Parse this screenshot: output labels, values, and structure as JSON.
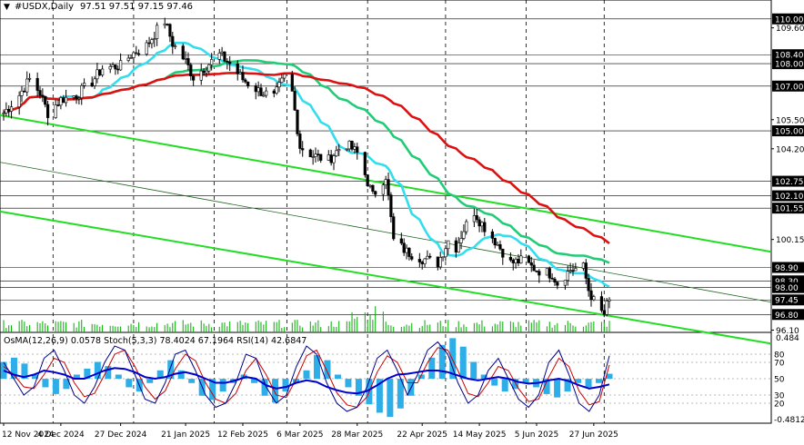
{
  "header": {
    "symbol": "#USDX,Daily",
    "ohlc": "97.51 97.51 97.15 97.46"
  },
  "colors": {
    "candle": "#000000",
    "level": "#000000",
    "ma_fast": "#33ddee",
    "ma_mid": "#22cc77",
    "ma_slow": "#dd1111",
    "channel": "#22dd22",
    "volume": "#00aa00",
    "macd_hist": "#2eaee8",
    "stoch_main": "#000088",
    "stoch_signal": "#cc0000",
    "rsi": "#0000cc",
    "tag_bg": "#000000",
    "tag_text": "#ffffff"
  },
  "chart_data": {
    "type": "candlestick",
    "symbol": "#USDX",
    "timeframe": "Daily",
    "y_axis": {
      "ylim": [
        96.0,
        110.6
      ],
      "ticks": [
        109.6,
        108.4,
        108.0,
        107.0,
        105.5,
        104.2,
        102.75,
        101.55,
        100.15,
        98.9,
        98.0,
        96.8,
        96.1
      ]
    },
    "price_axis_labels": [
      {
        "text": "110.00",
        "value": 110.0,
        "tag": true
      },
      {
        "text": "109.60",
        "value": 109.6,
        "tag": false
      },
      {
        "text": "108.40",
        "value": 108.4,
        "tag": true
      },
      {
        "text": "108.00",
        "value": 108.0,
        "tag": true
      },
      {
        "text": "107.00",
        "value": 107.0,
        "tag": true
      },
      {
        "text": "105.50",
        "value": 105.5,
        "tag": false
      },
      {
        "text": "105.00",
        "value": 105.0,
        "tag": true
      },
      {
        "text": "104.20",
        "value": 104.2,
        "tag": false
      },
      {
        "text": "102.75",
        "value": 102.75,
        "tag": true
      },
      {
        "text": "102.10",
        "value": 102.1,
        "tag": true
      },
      {
        "text": "101.55",
        "value": 101.55,
        "tag": true
      },
      {
        "text": "100.15",
        "value": 100.15,
        "tag": false
      },
      {
        "text": "98.90",
        "value": 98.9,
        "tag": true
      },
      {
        "text": "98.30",
        "value": 98.3,
        "tag": true
      },
      {
        "text": "98.00",
        "value": 98.0,
        "tag": true
      },
      {
        "text": "97.45",
        "value": 97.45,
        "tag": true
      },
      {
        "text": "96.80",
        "value": 96.8,
        "tag": true
      },
      {
        "text": "96.10",
        "value": 96.1,
        "tag": false
      }
    ],
    "levels": [
      110.0,
      108.4,
      108.0,
      107.0,
      105.0,
      102.75,
      102.1,
      101.55,
      98.9,
      98.3,
      98.0,
      97.45,
      96.8
    ],
    "x_labels": [
      "12 Nov 2024",
      "4 Dec 2024",
      "27 Dec 2024",
      "21 Jan 2025",
      "12 Feb 2025",
      "6 Mar 2025",
      "28 Mar 2025",
      "22 Apr 2025",
      "14 May 2025",
      "5 Jun 2025",
      "27 Jun 2025"
    ],
    "period_separators": [
      "Dec 2024",
      "Jan 2025",
      "Feb 2025",
      "Mar 2025",
      "Apr 2025",
      "May 2025",
      "Jun 2025",
      "Jul 2025"
    ],
    "close_path": [
      [
        "12 Nov 2024",
        105.8
      ],
      [
        "18 Nov 2024",
        106.6
      ],
      [
        "22 Nov 2024",
        107.3
      ],
      [
        "26 Nov 2024",
        106.7
      ],
      [
        "29 Nov 2024",
        105.8
      ],
      [
        "4 Dec 2024",
        106.4
      ],
      [
        "10 Dec 2024",
        106.6
      ],
      [
        "16 Dec 2024",
        107.2
      ],
      [
        "20 Dec 2024",
        107.8
      ],
      [
        "27 Dec 2024",
        107.9
      ],
      [
        "31 Dec 2024",
        108.4
      ],
      [
        "6 Jan 2025",
        108.8
      ],
      [
        "10 Jan 2025",
        109.5
      ],
      [
        "13 Jan 2025",
        109.9
      ],
      [
        "16 Jan 2025",
        108.9
      ],
      [
        "21 Jan 2025",
        108.1
      ],
      [
        "24 Jan 2025",
        107.4
      ],
      [
        "29 Jan 2025",
        107.9
      ],
      [
        "3 Feb 2025",
        108.4
      ],
      [
        "7 Feb 2025",
        108.0
      ],
      [
        "12 Feb 2025",
        107.3
      ],
      [
        "18 Feb 2025",
        106.8
      ],
      [
        "24 Feb 2025",
        106.5
      ],
      [
        "28 Feb 2025",
        107.4
      ],
      [
        "3 Mar 2025",
        106.7
      ],
      [
        "6 Mar 2025",
        104.3
      ],
      [
        "11 Mar 2025",
        103.9
      ],
      [
        "17 Mar 2025",
        103.7
      ],
      [
        "21 Mar 2025",
        104.2
      ],
      [
        "24 Mar 2025",
        104.4
      ],
      [
        "28 Mar 2025",
        104.0
      ],
      [
        "3 Apr 2025",
        102.1
      ],
      [
        "8 Apr 2025",
        103.0
      ],
      [
        "11 Apr 2025",
        100.1
      ],
      [
        "16 Apr 2025",
        99.6
      ],
      [
        "22 Apr 2025",
        99.3
      ],
      [
        "28 Apr 2025",
        99.1
      ],
      [
        "2 May 2025",
        100.1
      ],
      [
        "5 May 2025",
        99.8
      ],
      [
        "8 May 2025",
        100.6
      ],
      [
        "12 May 2025",
        101.4
      ],
      [
        "14 May 2025",
        101.0
      ],
      [
        "20 May 2025",
        100.1
      ],
      [
        "26 May 2025",
        99.1
      ],
      [
        "30 May 2025",
        99.2
      ],
      [
        "5 Jun 2025",
        98.8
      ],
      [
        "11 Jun 2025",
        98.6
      ],
      [
        "13 Jun 2025",
        98.2
      ],
      [
        "18 Jun 2025",
        98.8
      ],
      [
        "23 Jun 2025",
        98.9
      ],
      [
        "25 Jun 2025",
        97.9
      ],
      [
        "27 Jun 2025",
        97.4
      ],
      [
        "30 Jun 2025",
        96.9
      ],
      [
        "1 Jul 2025",
        96.8
      ],
      [
        "2 Jul 2025",
        97.2
      ],
      [
        "3 Jul 2025",
        97.46
      ]
    ],
    "indicators": {
      "header_text": "OsMA(12,26,9) 0.0578 Stoch(5,3,3) 78.4024 67.1964 RSI(14) 42.6847",
      "osma_scale": {
        "max_label": "0.484",
        "min_label": "-0.4812",
        "max": 0.484,
        "min": -0.4812
      },
      "oscillator_levels": [
        "80",
        "70",
        "50",
        "30",
        "20"
      ],
      "osma_hist": [
        0.2,
        0.25,
        0.18,
        0.05,
        -0.1,
        -0.18,
        -0.12,
        0.05,
        0.12,
        0.2,
        0.15,
        0.05,
        -0.1,
        -0.15,
        -0.05,
        0.1,
        0.22,
        0.1,
        -0.05,
        -0.2,
        -0.25,
        -0.15,
        -0.05,
        0.05,
        -0.05,
        -0.2,
        -0.28,
        -0.15,
        -0.05,
        0.1,
        0.28,
        0.22,
        0.05,
        -0.1,
        -0.2,
        -0.3,
        -0.4,
        -0.45,
        -0.35,
        -0.2,
        0.05,
        0.25,
        0.4,
        0.48,
        0.38,
        0.2,
        0.05,
        -0.08,
        -0.15,
        -0.12,
        -0.05,
        -0.1,
        -0.18,
        -0.22,
        -0.15,
        -0.05,
        -0.1,
        -0.05,
        0.06
      ],
      "stoch_main": [
        70,
        50,
        30,
        40,
        75,
        85,
        60,
        30,
        20,
        40,
        70,
        90,
        85,
        55,
        25,
        20,
        45,
        80,
        85,
        60,
        30,
        15,
        20,
        45,
        80,
        75,
        40,
        20,
        30,
        65,
        90,
        80,
        45,
        20,
        10,
        15,
        40,
        75,
        85,
        60,
        30,
        55,
        85,
        95,
        80,
        45,
        20,
        30,
        60,
        75,
        50,
        25,
        15,
        30,
        70,
        85,
        55,
        20,
        10,
        30,
        78
      ],
      "stoch_signal": [
        65,
        55,
        40,
        38,
        55,
        75,
        70,
        45,
        28,
        32,
        55,
        80,
        85,
        65,
        40,
        25,
        35,
        62,
        80,
        72,
        45,
        25,
        20,
        32,
        60,
        75,
        55,
        30,
        27,
        50,
        78,
        85,
        60,
        33,
        18,
        15,
        28,
        58,
        78,
        70,
        45,
        45,
        70,
        88,
        85,
        60,
        32,
        28,
        45,
        65,
        60,
        38,
        22,
        25,
        52,
        75,
        65,
        35,
        18,
        22,
        67
      ],
      "rsi": [
        60,
        55,
        52,
        55,
        60,
        58,
        55,
        50,
        50,
        55,
        60,
        63,
        62,
        58,
        52,
        50,
        52,
        56,
        58,
        55,
        50,
        45,
        45,
        48,
        52,
        50,
        42,
        38,
        40,
        45,
        48,
        46,
        40,
        36,
        33,
        32,
        35,
        42,
        50,
        55,
        56,
        58,
        60,
        60,
        58,
        54,
        50,
        48,
        50,
        52,
        50,
        46,
        44,
        45,
        48,
        50,
        47,
        42,
        38,
        40,
        43
      ]
    }
  }
}
